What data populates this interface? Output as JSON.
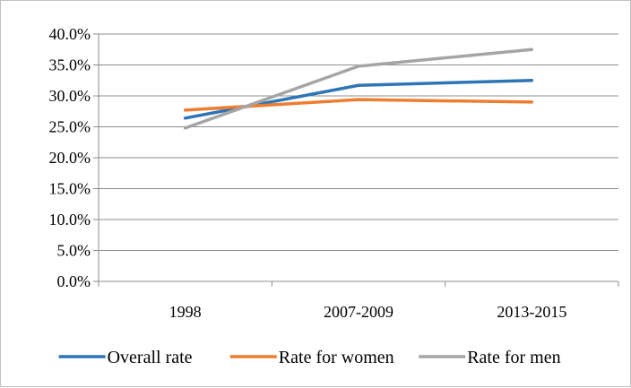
{
  "chart_data": {
    "type": "line",
    "title": "",
    "xlabel": "",
    "ylabel": "",
    "categories": [
      "1998",
      "2007-2009",
      "2013-2015"
    ],
    "y_ticks": [
      "0.0%",
      "5.0%",
      "10.0%",
      "15.0%",
      "20.0%",
      "25.0%",
      "30.0%",
      "35.0%",
      "40.0%"
    ],
    "ylim": [
      0,
      40
    ],
    "grid": true,
    "legend_position": "bottom",
    "series": [
      {
        "name": "Overall rate",
        "values": [
          26.4,
          31.7,
          32.5
        ],
        "color": "#2e75b6"
      },
      {
        "name": "Rate for women",
        "values": [
          27.7,
          29.4,
          29.0
        ],
        "color": "#ed7d31"
      },
      {
        "name": "Rate for men",
        "values": [
          24.8,
          34.8,
          37.5
        ],
        "color": "#a5a5a5"
      }
    ]
  }
}
